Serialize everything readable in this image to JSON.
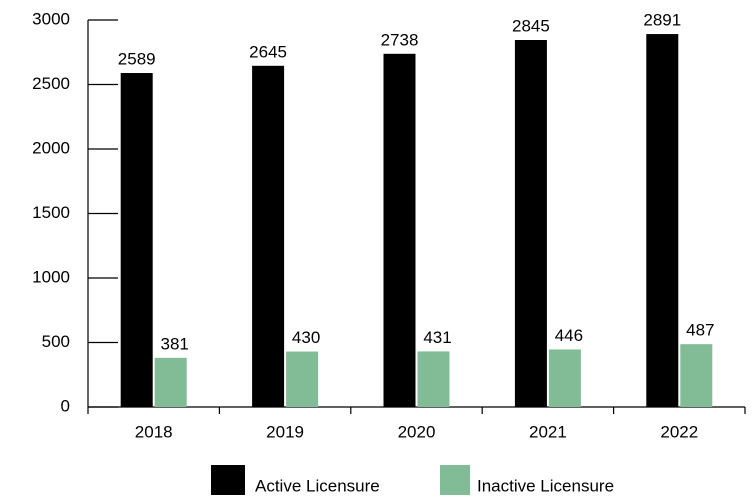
{
  "chart_data": {
    "type": "bar",
    "categories": [
      "2018",
      "2019",
      "2020",
      "2021",
      "2022"
    ],
    "series": [
      {
        "name": "Active Licensure",
        "color": "#000000",
        "values": [
          2589,
          2645,
          2738,
          2845,
          2891
        ]
      },
      {
        "name": "Inactive Licensure",
        "color": "#82bc96",
        "values": [
          381,
          430,
          431,
          446,
          487
        ]
      }
    ],
    "ylim": [
      0,
      3000
    ],
    "yticks": [
      0,
      500,
      1000,
      1500,
      2000,
      2500,
      3000
    ],
    "grid": false,
    "legend": "bottom"
  }
}
